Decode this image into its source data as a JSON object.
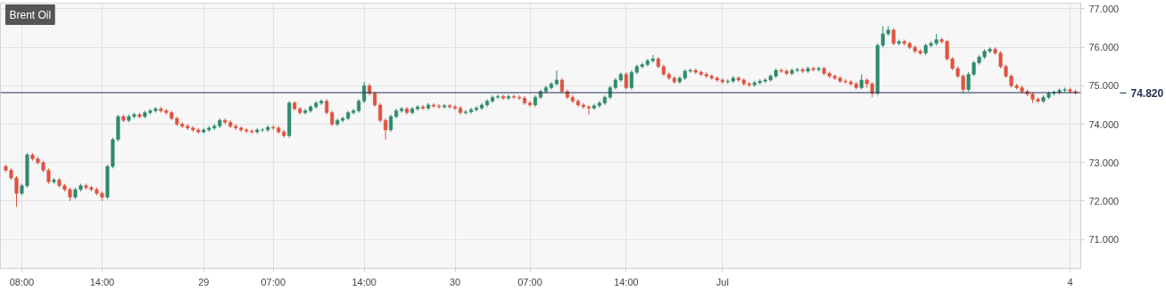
{
  "chart_data": {
    "type": "candlestick",
    "title": "Brent Oil",
    "categories": [
      null,
      null,
      null,
      "08:00",
      null,
      null,
      null,
      null,
      null,
      null,
      null,
      null,
      null,
      null,
      null,
      null,
      null,
      null,
      "14:00",
      null,
      null,
      null,
      null,
      null,
      null,
      null,
      null,
      null,
      null,
      null,
      null,
      null,
      null,
      null,
      null,
      null,
      null,
      "29",
      null,
      null,
      null,
      null,
      null,
      null,
      null,
      null,
      null,
      null,
      null,
      null,
      "07:00",
      null,
      null,
      null,
      null,
      null,
      null,
      null,
      null,
      null,
      null,
      null,
      null,
      null,
      null,
      null,
      null,
      "14:00",
      null,
      null,
      null,
      null,
      null,
      null,
      null,
      null,
      null,
      null,
      null,
      null,
      null,
      null,
      null,
      null,
      "30",
      null,
      null,
      null,
      null,
      null,
      null,
      null,
      null,
      null,
      null,
      null,
      null,
      null,
      "07:00",
      null,
      null,
      null,
      null,
      null,
      null,
      null,
      null,
      null,
      null,
      null,
      null,
      null,
      null,
      null,
      null,
      null,
      "14:00",
      null,
      null,
      null,
      null,
      null,
      null,
      null,
      null,
      null,
      null,
      null,
      null,
      null,
      null,
      null,
      null,
      null,
      "Jul",
      null,
      null,
      null,
      null,
      null,
      null,
      null,
      null,
      null,
      null,
      null,
      null,
      null,
      null,
      null,
      null,
      null,
      null,
      null,
      null,
      null,
      null,
      null,
      null,
      null,
      null,
      null,
      null,
      null,
      null,
      null,
      null,
      null,
      null,
      null,
      null,
      null,
      null,
      null,
      null,
      null,
      null,
      null,
      null,
      null,
      null,
      null,
      null,
      null,
      null,
      null,
      null,
      null,
      null,
      null,
      null,
      null,
      null,
      null,
      null,
      null,
      null,
      null,
      null,
      "4",
      null
    ],
    "ohlc": [
      [
        72.9,
        72.95,
        72.75,
        72.8
      ],
      [
        72.8,
        72.85,
        72.55,
        72.6
      ],
      [
        72.6,
        72.65,
        71.85,
        72.2
      ],
      [
        72.2,
        72.45,
        72.15,
        72.4
      ],
      [
        72.4,
        73.25,
        72.35,
        73.2
      ],
      [
        73.2,
        73.25,
        73.05,
        73.1
      ],
      [
        73.1,
        73.15,
        72.95,
        73.0
      ],
      [
        73.0,
        73.05,
        72.75,
        72.8
      ],
      [
        72.8,
        72.85,
        72.45,
        72.5
      ],
      [
        72.5,
        72.6,
        72.45,
        72.55
      ],
      [
        72.55,
        72.6,
        72.35,
        72.4
      ],
      [
        72.4,
        72.45,
        72.25,
        72.3
      ],
      [
        72.3,
        72.35,
        72.0,
        72.1
      ],
      [
        72.1,
        72.35,
        72.05,
        72.3
      ],
      [
        72.3,
        72.45,
        72.25,
        72.4
      ],
      [
        72.4,
        72.45,
        72.3,
        72.35
      ],
      [
        72.35,
        72.4,
        72.25,
        72.3
      ],
      [
        72.3,
        72.35,
        72.15,
        72.2
      ],
      [
        72.2,
        72.25,
        72.0,
        72.1
      ],
      [
        72.1,
        72.95,
        72.05,
        72.9
      ],
      [
        72.9,
        73.65,
        72.85,
        73.6
      ],
      [
        73.6,
        74.25,
        73.55,
        74.2
      ],
      [
        74.2,
        74.25,
        74.05,
        74.1
      ],
      [
        74.1,
        74.25,
        74.05,
        74.2
      ],
      [
        74.2,
        74.3,
        74.15,
        74.25
      ],
      [
        74.25,
        74.3,
        74.15,
        74.2
      ],
      [
        74.2,
        74.35,
        74.15,
        74.3
      ],
      [
        74.3,
        74.4,
        74.25,
        74.35
      ],
      [
        74.35,
        74.45,
        74.3,
        74.4
      ],
      [
        74.4,
        74.45,
        74.3,
        74.35
      ],
      [
        74.35,
        74.4,
        74.25,
        74.3
      ],
      [
        74.3,
        74.35,
        74.1,
        74.15
      ],
      [
        74.15,
        74.2,
        73.95,
        74.0
      ],
      [
        74.0,
        74.05,
        73.9,
        73.95
      ],
      [
        73.95,
        74.0,
        73.85,
        73.9
      ],
      [
        73.9,
        73.95,
        73.8,
        73.85
      ],
      [
        73.85,
        73.9,
        73.75,
        73.8
      ],
      [
        73.8,
        73.9,
        73.75,
        73.85
      ],
      [
        73.85,
        73.95,
        73.8,
        73.9
      ],
      [
        73.9,
        74.0,
        73.85,
        73.95
      ],
      [
        73.95,
        74.15,
        73.9,
        74.1
      ],
      [
        74.1,
        74.15,
        74.0,
        74.05
      ],
      [
        74.05,
        74.1,
        73.9,
        73.95
      ],
      [
        73.95,
        74.0,
        73.85,
        73.9
      ],
      [
        73.9,
        73.95,
        73.8,
        73.85
      ],
      [
        73.85,
        73.9,
        73.77,
        73.82
      ],
      [
        73.82,
        73.87,
        73.75,
        73.8
      ],
      [
        73.8,
        73.9,
        73.75,
        73.85
      ],
      [
        73.85,
        73.9,
        73.8,
        73.85
      ],
      [
        73.85,
        73.97,
        73.8,
        73.92
      ],
      [
        73.92,
        73.97,
        73.85,
        73.9
      ],
      [
        73.9,
        73.95,
        73.75,
        73.8
      ],
      [
        73.8,
        73.85,
        73.65,
        73.7
      ],
      [
        73.7,
        74.6,
        73.65,
        74.55
      ],
      [
        74.55,
        74.6,
        74.35,
        74.4
      ],
      [
        74.4,
        74.45,
        74.25,
        74.3
      ],
      [
        74.3,
        74.4,
        74.25,
        74.35
      ],
      [
        74.35,
        74.5,
        74.3,
        74.45
      ],
      [
        74.45,
        74.6,
        74.4,
        74.55
      ],
      [
        74.55,
        74.65,
        74.5,
        74.6
      ],
      [
        74.6,
        74.65,
        74.25,
        74.3
      ],
      [
        74.3,
        74.35,
        73.95,
        74.0
      ],
      [
        74.0,
        74.15,
        73.95,
        74.1
      ],
      [
        74.1,
        74.2,
        74.05,
        74.15
      ],
      [
        74.15,
        74.35,
        74.1,
        74.3
      ],
      [
        74.3,
        74.4,
        74.25,
        74.35
      ],
      [
        74.35,
        74.65,
        74.3,
        74.6
      ],
      [
        74.6,
        75.1,
        74.55,
        75.0
      ],
      [
        75.0,
        75.05,
        74.75,
        74.8
      ],
      [
        74.8,
        74.85,
        74.45,
        74.5
      ],
      [
        74.5,
        74.55,
        74.05,
        74.1
      ],
      [
        74.1,
        74.15,
        73.6,
        73.85
      ],
      [
        73.85,
        74.25,
        73.8,
        74.2
      ],
      [
        74.2,
        74.4,
        74.15,
        74.35
      ],
      [
        74.35,
        74.45,
        74.3,
        74.4
      ],
      [
        74.4,
        74.45,
        74.25,
        74.3
      ],
      [
        74.3,
        74.45,
        74.25,
        74.4
      ],
      [
        74.4,
        74.5,
        74.35,
        74.45
      ],
      [
        74.45,
        74.5,
        74.37,
        74.42
      ],
      [
        74.42,
        74.55,
        74.37,
        74.5
      ],
      [
        74.5,
        74.55,
        74.42,
        74.47
      ],
      [
        74.47,
        74.52,
        74.4,
        74.45
      ],
      [
        74.45,
        74.53,
        74.4,
        74.48
      ],
      [
        74.48,
        74.53,
        74.4,
        74.45
      ],
      [
        74.45,
        74.5,
        74.37,
        74.42
      ],
      [
        74.42,
        74.47,
        74.25,
        74.3
      ],
      [
        74.3,
        74.37,
        74.25,
        74.32
      ],
      [
        74.32,
        74.43,
        74.27,
        74.38
      ],
      [
        74.38,
        74.47,
        74.33,
        74.42
      ],
      [
        74.42,
        74.55,
        74.37,
        74.5
      ],
      [
        74.5,
        74.65,
        74.45,
        74.6
      ],
      [
        74.6,
        74.75,
        74.55,
        74.7
      ],
      [
        74.7,
        74.77,
        74.65,
        74.72
      ],
      [
        74.72,
        74.77,
        74.63,
        74.68
      ],
      [
        74.68,
        74.77,
        74.63,
        74.72
      ],
      [
        74.72,
        74.77,
        74.65,
        74.7
      ],
      [
        74.7,
        74.75,
        74.63,
        74.68
      ],
      [
        74.68,
        74.73,
        74.5,
        74.55
      ],
      [
        74.55,
        74.6,
        74.45,
        74.5
      ],
      [
        74.5,
        74.75,
        74.45,
        74.7
      ],
      [
        74.7,
        74.9,
        74.65,
        74.85
      ],
      [
        74.85,
        75.0,
        74.8,
        74.95
      ],
      [
        74.95,
        75.1,
        74.9,
        75.05
      ],
      [
        75.05,
        75.4,
        75.0,
        75.15
      ],
      [
        75.15,
        75.2,
        74.8,
        74.85
      ],
      [
        74.85,
        74.9,
        74.65,
        74.7
      ],
      [
        74.7,
        74.75,
        74.55,
        74.6
      ],
      [
        74.6,
        74.65,
        74.45,
        74.5
      ],
      [
        74.5,
        74.55,
        74.4,
        74.45
      ],
      [
        74.45,
        74.5,
        74.25,
        74.42
      ],
      [
        74.42,
        74.53,
        74.37,
        74.48
      ],
      [
        74.48,
        74.6,
        74.43,
        74.55
      ],
      [
        74.55,
        74.75,
        74.5,
        74.7
      ],
      [
        74.7,
        75.0,
        74.65,
        74.95
      ],
      [
        74.95,
        75.2,
        74.9,
        75.15
      ],
      [
        75.15,
        75.35,
        75.1,
        75.3
      ],
      [
        75.3,
        75.35,
        74.9,
        74.95
      ],
      [
        74.95,
        75.4,
        74.9,
        75.35
      ],
      [
        75.35,
        75.55,
        75.3,
        75.5
      ],
      [
        75.5,
        75.6,
        75.45,
        75.55
      ],
      [
        75.55,
        75.7,
        75.5,
        75.65
      ],
      [
        75.65,
        75.8,
        75.6,
        75.7
      ],
      [
        75.7,
        75.75,
        75.45,
        75.5
      ],
      [
        75.5,
        75.55,
        75.25,
        75.3
      ],
      [
        75.3,
        75.35,
        75.15,
        75.2
      ],
      [
        75.2,
        75.25,
        75.05,
        75.1
      ],
      [
        75.1,
        75.25,
        75.05,
        75.2
      ],
      [
        75.2,
        75.43,
        75.15,
        75.38
      ],
      [
        75.38,
        75.45,
        75.33,
        75.4
      ],
      [
        75.4,
        75.45,
        75.3,
        75.35
      ],
      [
        75.35,
        75.4,
        75.25,
        75.3
      ],
      [
        75.3,
        75.35,
        75.2,
        75.25
      ],
      [
        75.25,
        75.3,
        75.15,
        75.2
      ],
      [
        75.2,
        75.25,
        75.1,
        75.15
      ],
      [
        75.15,
        75.2,
        75.05,
        75.1
      ],
      [
        75.1,
        75.17,
        75.05,
        75.12
      ],
      [
        75.12,
        75.25,
        75.07,
        75.2
      ],
      [
        75.2,
        75.25,
        75.1,
        75.15
      ],
      [
        75.15,
        75.2,
        75.0,
        75.05
      ],
      [
        75.05,
        75.1,
        74.97,
        75.02
      ],
      [
        75.02,
        75.13,
        74.97,
        75.08
      ],
      [
        75.08,
        75.17,
        75.03,
        75.12
      ],
      [
        75.12,
        75.2,
        75.07,
        75.15
      ],
      [
        75.15,
        75.3,
        75.1,
        75.25
      ],
      [
        75.25,
        75.45,
        75.2,
        75.4
      ],
      [
        75.4,
        75.45,
        75.33,
        75.38
      ],
      [
        75.38,
        75.43,
        75.27,
        75.32
      ],
      [
        75.32,
        75.45,
        75.27,
        75.4
      ],
      [
        75.4,
        75.47,
        75.35,
        75.42
      ],
      [
        75.42,
        75.47,
        75.33,
        75.38
      ],
      [
        75.38,
        75.5,
        75.33,
        75.45
      ],
      [
        75.45,
        75.5,
        75.37,
        75.42
      ],
      [
        75.42,
        75.5,
        75.37,
        75.45
      ],
      [
        75.45,
        75.5,
        75.27,
        75.32
      ],
      [
        75.32,
        75.37,
        75.2,
        75.25
      ],
      [
        75.25,
        75.3,
        75.15,
        75.2
      ],
      [
        75.2,
        75.25,
        75.07,
        75.12
      ],
      [
        75.12,
        75.17,
        75.05,
        75.1
      ],
      [
        75.1,
        75.15,
        75.0,
        75.05
      ],
      [
        75.05,
        75.1,
        74.9,
        74.95
      ],
      [
        74.95,
        75.3,
        74.9,
        75.15
      ],
      [
        75.15,
        75.2,
        74.95,
        75.05
      ],
      [
        75.05,
        75.1,
        74.7,
        74.8
      ],
      [
        74.8,
        76.1,
        74.75,
        76.05
      ],
      [
        76.05,
        76.55,
        76.0,
        76.35
      ],
      [
        76.35,
        76.55,
        76.3,
        76.45
      ],
      [
        76.45,
        76.5,
        76.05,
        76.1
      ],
      [
        76.1,
        76.2,
        76.05,
        76.15
      ],
      [
        76.15,
        76.2,
        76.05,
        76.1
      ],
      [
        76.1,
        76.15,
        75.95,
        76.0
      ],
      [
        76.0,
        76.05,
        75.85,
        75.9
      ],
      [
        75.9,
        75.95,
        75.8,
        75.85
      ],
      [
        75.85,
        76.1,
        75.8,
        76.05
      ],
      [
        76.05,
        76.15,
        76.0,
        76.1
      ],
      [
        76.1,
        76.35,
        76.05,
        76.2
      ],
      [
        76.2,
        76.25,
        76.1,
        76.15
      ],
      [
        76.15,
        76.2,
        75.65,
        75.7
      ],
      [
        75.7,
        75.75,
        75.4,
        75.45
      ],
      [
        75.45,
        75.5,
        75.2,
        75.25
      ],
      [
        75.25,
        75.3,
        74.8,
        74.9
      ],
      [
        74.9,
        75.35,
        74.85,
        75.3
      ],
      [
        75.3,
        75.65,
        75.25,
        75.6
      ],
      [
        75.6,
        75.8,
        75.55,
        75.75
      ],
      [
        75.75,
        75.95,
        75.7,
        75.9
      ],
      [
        75.9,
        76.0,
        75.85,
        75.95
      ],
      [
        75.95,
        76.0,
        75.8,
        75.85
      ],
      [
        75.85,
        75.9,
        75.45,
        75.5
      ],
      [
        75.5,
        75.55,
        75.2,
        75.25
      ],
      [
        75.25,
        75.3,
        74.95,
        75.0
      ],
      [
        75.0,
        75.05,
        74.9,
        74.95
      ],
      [
        74.95,
        75.0,
        74.8,
        74.85
      ],
      [
        74.85,
        74.9,
        74.73,
        74.78
      ],
      [
        74.78,
        74.83,
        74.55,
        74.65
      ],
      [
        74.65,
        74.7,
        74.55,
        74.6
      ],
      [
        74.6,
        74.75,
        74.55,
        74.7
      ],
      [
        74.7,
        74.85,
        74.65,
        74.8
      ],
      [
        74.8,
        74.88,
        74.75,
        74.83
      ],
      [
        74.83,
        74.93,
        74.78,
        74.88
      ],
      [
        74.88,
        74.95,
        74.83,
        74.9
      ],
      [
        74.9,
        74.95,
        74.8,
        74.85
      ],
      [
        74.85,
        74.9,
        74.77,
        74.82
      ]
    ],
    "colors": [
      "#e0533f",
      "#e0533f",
      "#e0533f",
      "#2f8a6c",
      "#2f8a6c",
      "#e0533f",
      "#e0533f",
      "#e0533f",
      "#e0533f",
      "#2f8a6c",
      "#e0533f",
      "#e0533f",
      "#e0533f",
      "#2f8a6c",
      "#2f8a6c",
      "#e0533f",
      "#e0533f",
      "#e0533f",
      "#e0533f",
      "#2f8a6c",
      "#2f8a6c",
      "#2f8a6c",
      "#e0533f",
      "#2f8a6c",
      "#2f8a6c",
      "#e0533f",
      "#2f8a6c",
      "#2f8a6c",
      "#2f8a6c",
      "#e0533f",
      "#e0533f",
      "#e0533f",
      "#e0533f",
      "#e0533f",
      "#e0533f",
      "#e0533f",
      "#e0533f",
      "#2f8a6c",
      "#2f8a6c",
      "#2f8a6c",
      "#2f8a6c",
      "#e0533f",
      "#e0533f",
      "#e0533f",
      "#e0533f",
      "#e0533f",
      "#e0533f",
      "#2f8a6c",
      "#2f8a6c",
      "#2f8a6c",
      "#e0533f",
      "#e0533f",
      "#e0533f",
      "#2f8a6c",
      "#e0533f",
      "#e0533f",
      "#2f8a6c",
      "#2f8a6c",
      "#2f8a6c",
      "#2f8a6c",
      "#e0533f",
      "#e0533f",
      "#2f8a6c",
      "#2f8a6c",
      "#2f8a6c",
      "#2f8a6c",
      "#2f8a6c",
      "#2f8a6c",
      "#e0533f",
      "#e0533f",
      "#e0533f",
      "#e0533f",
      "#2f8a6c",
      "#2f8a6c",
      "#2f8a6c",
      "#e0533f",
      "#2f8a6c",
      "#2f8a6c",
      "#e0533f",
      "#2f8a6c",
      "#e0533f",
      "#e0533f",
      "#2f8a6c",
      "#e0533f",
      "#e0533f",
      "#e0533f",
      "#2f8a6c",
      "#2f8a6c",
      "#2f8a6c",
      "#2f8a6c",
      "#2f8a6c",
      "#2f8a6c",
      "#2f8a6c",
      "#e0533f",
      "#2f8a6c",
      "#e0533f",
      "#e0533f",
      "#e0533f",
      "#e0533f",
      "#2f8a6c",
      "#2f8a6c",
      "#2f8a6c",
      "#2f8a6c",
      "#2f8a6c",
      "#e0533f",
      "#e0533f",
      "#e0533f",
      "#e0533f",
      "#e0533f",
      "#e0533f",
      "#2f8a6c",
      "#2f8a6c",
      "#2f8a6c",
      "#2f8a6c",
      "#2f8a6c",
      "#2f8a6c",
      "#e0533f",
      "#2f8a6c",
      "#2f8a6c",
      "#2f8a6c",
      "#2f8a6c",
      "#2f8a6c",
      "#e0533f",
      "#e0533f",
      "#e0533f",
      "#e0533f",
      "#2f8a6c",
      "#2f8a6c",
      "#2f8a6c",
      "#e0533f",
      "#e0533f",
      "#e0533f",
      "#e0533f",
      "#e0533f",
      "#e0533f",
      "#2f8a6c",
      "#2f8a6c",
      "#e0533f",
      "#e0533f",
      "#e0533f",
      "#2f8a6c",
      "#2f8a6c",
      "#2f8a6c",
      "#2f8a6c",
      "#2f8a6c",
      "#e0533f",
      "#e0533f",
      "#2f8a6c",
      "#2f8a6c",
      "#e0533f",
      "#2f8a6c",
      "#e0533f",
      "#2f8a6c",
      "#e0533f",
      "#e0533f",
      "#e0533f",
      "#e0533f",
      "#e0533f",
      "#e0533f",
      "#e0533f",
      "#2f8a6c",
      "#e0533f",
      "#e0533f",
      "#2f8a6c",
      "#2f8a6c",
      "#2f8a6c",
      "#e0533f",
      "#2f8a6c",
      "#e0533f",
      "#e0533f",
      "#e0533f",
      "#e0533f",
      "#2f8a6c",
      "#2f8a6c",
      "#2f8a6c",
      "#e0533f",
      "#e0533f",
      "#e0533f",
      "#e0533f",
      "#e0533f",
      "#2f8a6c",
      "#2f8a6c",
      "#2f8a6c",
      "#2f8a6c",
      "#2f8a6c",
      "#e0533f",
      "#e0533f",
      "#e0533f",
      "#e0533f",
      "#e0533f",
      "#e0533f",
      "#e0533f",
      "#e0533f",
      "#e0533f",
      "#2f8a6c",
      "#2f8a6c",
      "#2f8a6c",
      "#2f8a6c",
      "#2f8a6c",
      "#e0533f",
      "#e0533f"
    ],
    "ylim": [
      70.25,
      77.15
    ],
    "yticks": [
      {
        "value": 71,
        "label": "71.000"
      },
      {
        "value": 72,
        "label": "72.000"
      },
      {
        "value": 73,
        "label": "73.000"
      },
      {
        "value": 74,
        "label": "74.000"
      },
      {
        "value": 75,
        "label": "75.000"
      },
      {
        "value": 76,
        "label": "76.000"
      },
      {
        "value": 77,
        "label": "77.000"
      }
    ],
    "ref_lines": [
      {
        "axis": "y",
        "value": 74.82,
        "label": "74.820",
        "color": "#1f2d4d"
      }
    ],
    "grid": true
  }
}
